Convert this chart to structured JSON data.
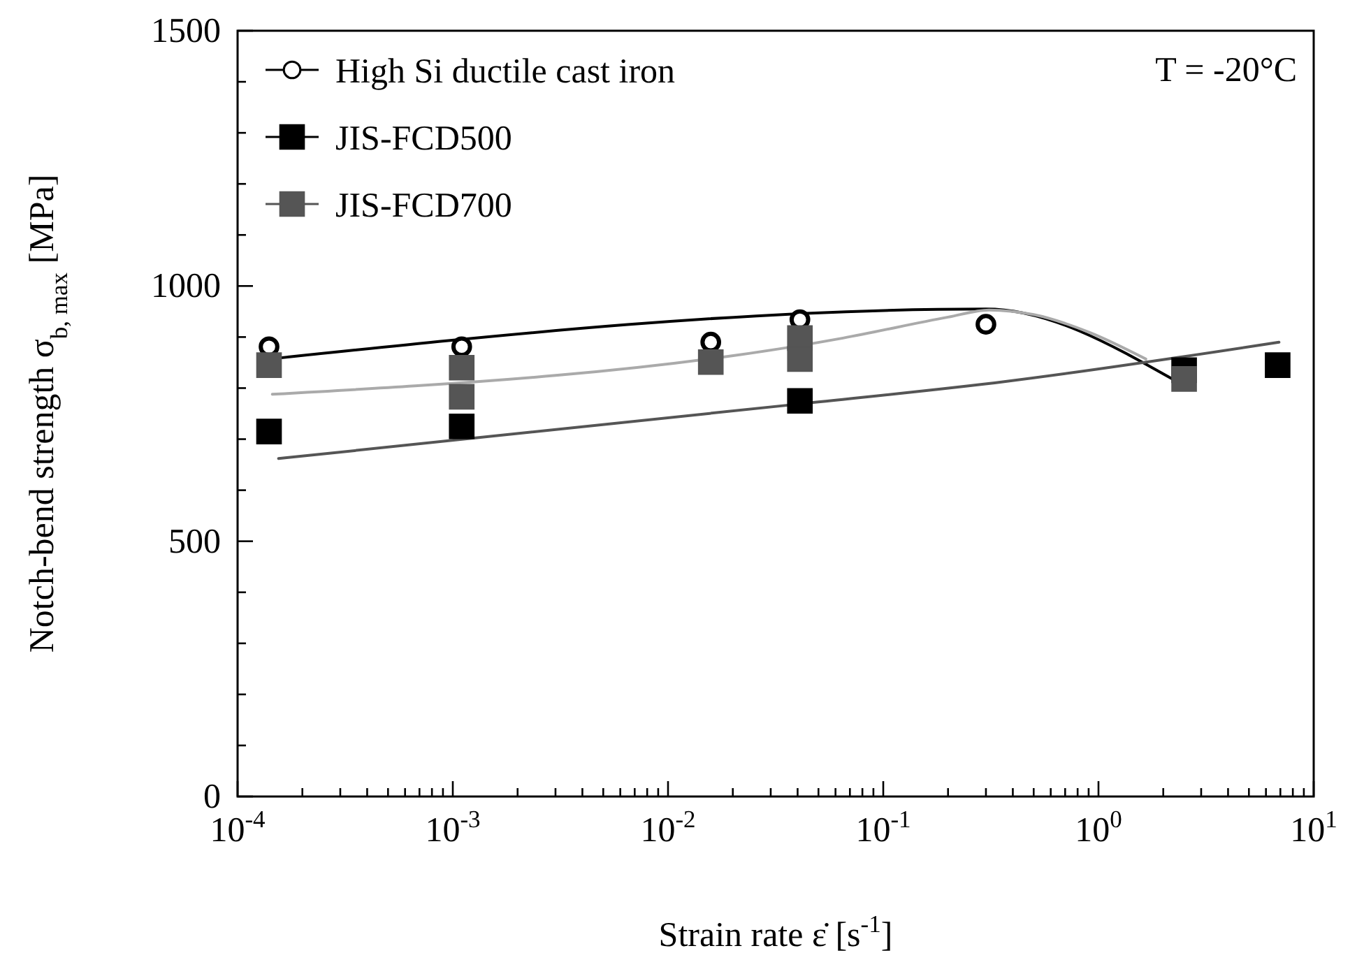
{
  "chart_data": {
    "type": "scatter",
    "xlabel": "Strain rate ε̇ [s$^{-1}$]",
    "ylabel": "Notch-bend strength σ$_{b, max}$ [MPa]",
    "log": "x",
    "xlim": [
      0.0001,
      10
    ],
    "ylim": [
      0,
      1500
    ],
    "xticks": [
      {
        "value": 0.0001,
        "label": "10$^{-4}$"
      },
      {
        "value": 0.0002,
        "label": null
      },
      {
        "value": 0.0003,
        "label": null
      },
      {
        "value": 0.0004,
        "label": null
      },
      {
        "value": 0.0005,
        "label": null
      },
      {
        "value": 0.0006,
        "label": null
      },
      {
        "value": 0.0007,
        "label": null
      },
      {
        "value": 0.0008,
        "label": null
      },
      {
        "value": 0.0009,
        "label": null
      },
      {
        "value": 0.001,
        "label": "10$^{-3}$"
      },
      {
        "value": 0.002,
        "label": null
      },
      {
        "value": 0.003,
        "label": null
      },
      {
        "value": 0.004,
        "label": null
      },
      {
        "value": 0.005,
        "label": null
      },
      {
        "value": 0.006,
        "label": null
      },
      {
        "value": 0.007,
        "label": null
      },
      {
        "value": 0.008,
        "label": null
      },
      {
        "value": 0.009,
        "label": null
      },
      {
        "value": 0.01,
        "label": "10$^{-2}$"
      },
      {
        "value": 0.02,
        "label": null
      },
      {
        "value": 0.03,
        "label": null
      },
      {
        "value": 0.04,
        "label": null
      },
      {
        "value": 0.05,
        "label": null
      },
      {
        "value": 0.06,
        "label": null
      },
      {
        "value": 0.07,
        "label": null
      },
      {
        "value": 0.08,
        "label": null
      },
      {
        "value": 0.09,
        "label": null
      },
      {
        "value": 0.1,
        "label": "10$^{-1}$"
      },
      {
        "value": 0.2,
        "label": null
      },
      {
        "value": 0.3,
        "label": null
      },
      {
        "value": 0.4,
        "label": null
      },
      {
        "value": 0.5,
        "label": null
      },
      {
        "value": 0.6,
        "label": null
      },
      {
        "value": 0.7,
        "label": null
      },
      {
        "value": 0.8,
        "label": null
      },
      {
        "value": 0.9,
        "label": null
      },
      {
        "value": 1,
        "label": "10$^{0}$"
      },
      {
        "value": 2,
        "label": null
      },
      {
        "value": 3,
        "label": null
      },
      {
        "value": 4,
        "label": null
      },
      {
        "value": 5,
        "label": null
      },
      {
        "value": 6,
        "label": null
      },
      {
        "value": 7,
        "label": null
      },
      {
        "value": 8,
        "label": null
      },
      {
        "value": 9,
        "label": null
      },
      {
        "value": 10,
        "label": "10$^{1}$"
      }
    ],
    "yticks": [
      0,
      {
        "value": 100,
        "label": null
      },
      {
        "value": 200,
        "label": null
      },
      {
        "value": 300,
        "label": null
      },
      {
        "value": 400,
        "label": null
      },
      500,
      {
        "value": 600,
        "label": null
      },
      {
        "value": 700,
        "label": null
      },
      {
        "value": 800,
        "label": null
      },
      {
        "value": 900,
        "label": null
      },
      1000,
      {
        "value": 1100,
        "label": null
      },
      {
        "value": 1200,
        "label": null
      },
      {
        "value": 1300,
        "label": null
      },
      {
        "value": 1400,
        "label": null
      },
      1500
    ],
    "grid": false,
    "legend": "top left",
    "annotations": [
      "T = -20°C"
    ],
    "series": [
      {
        "type": "line",
        "color": "#000000",
        "marker": "none",
        "x": [
          0.00014,
          0.3,
          2.2
        ],
        "values": [
          857,
          955,
          818
        ]
      },
      {
        "type": "line",
        "color": "#aaaaaa",
        "marker": "none",
        "x": [
          0.000145,
          0.065,
          0.2,
          0.31,
          0.5,
          0.91,
          1.66
        ],
        "values": [
          788,
          898,
          939,
          953,
          944,
          909,
          857
        ]
      },
      {
        "type": "line",
        "color": "#555555",
        "marker": "none",
        "x": [
          0.000155,
          0.041,
          0.37,
          6.9
        ],
        "values": [
          662,
          769,
          813,
          890
        ]
      },
      {
        "name": "High Si ductile cast iron",
        "color": "#000000",
        "marker": "circle",
        "x": [
          0.00014,
          0.0011,
          0.0158,
          0.041,
          0.3
        ],
        "values": [
          881,
          881,
          890,
          934,
          925
        ]
      },
      {
        "name": "JIS-FCD500",
        "color": "#000000",
        "marker": "square",
        "x": [
          0.00014,
          0.0011,
          0.041,
          2.5,
          6.8
        ],
        "values": [
          715,
          725,
          775,
          835,
          845
        ]
      },
      {
        "name": "JIS-FCD700",
        "color": "#555555",
        "marker": "square",
        "x": [
          0.00014,
          0.0011,
          0.0011,
          0.0158,
          0.041,
          0.041,
          2.5
        ],
        "values": [
          845,
          840,
          783,
          851,
          898,
          857,
          818
        ]
      }
    ]
  }
}
